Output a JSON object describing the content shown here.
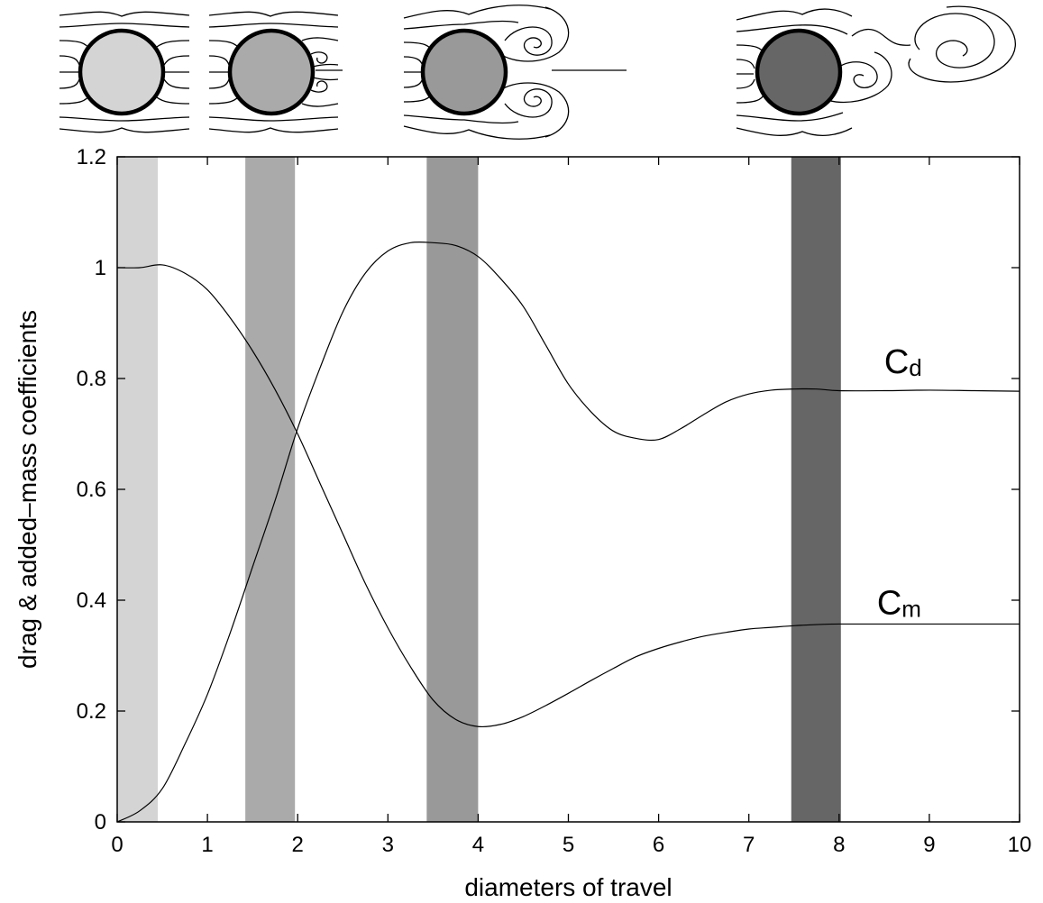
{
  "chart_data": {
    "type": "line",
    "xlabel": "diameters of travel",
    "ylabel": "drag & added–mass coefficients",
    "xlim": [
      0,
      10
    ],
    "ylim": [
      0,
      1.2
    ],
    "xticks": [
      0,
      1,
      2,
      3,
      4,
      5,
      6,
      7,
      8,
      9,
      10
    ],
    "yticks": [
      0,
      0.2,
      0.4,
      0.6,
      0.8,
      1,
      1.2
    ],
    "xtick_labels": [
      "0",
      "1",
      "2",
      "3",
      "4",
      "5",
      "6",
      "7",
      "8",
      "9",
      "10"
    ],
    "ytick_labels": [
      "0",
      "0.2",
      "0.4",
      "0.6",
      "0.8",
      "1",
      "1.2"
    ],
    "grid": false,
    "shaded_bands": [
      {
        "x": [
          0,
          0.45
        ],
        "color": "#d4d4d4"
      },
      {
        "x": [
          1.42,
          1.97
        ],
        "color": "#aaaaaa"
      },
      {
        "x": [
          3.43,
          4.0
        ],
        "color": "#999999"
      },
      {
        "x": [
          7.47,
          8.02
        ],
        "color": "#666666"
      }
    ],
    "series": [
      {
        "name": "Cd",
        "label_main": "C",
        "label_sub": "d",
        "x": [
          0,
          0.25,
          0.5,
          0.75,
          1,
          1.25,
          1.5,
          1.75,
          2,
          2.25,
          2.5,
          2.75,
          3,
          3.25,
          3.5,
          3.75,
          4,
          4.25,
          4.5,
          4.75,
          5,
          5.25,
          5.5,
          5.75,
          6,
          6.25,
          6.5,
          6.75,
          7,
          7.25,
          7.5,
          7.75,
          8,
          8.5,
          9,
          9.5,
          10
        ],
        "y": [
          0,
          0.02,
          0.06,
          0.14,
          0.23,
          0.34,
          0.46,
          0.58,
          0.71,
          0.82,
          0.92,
          0.99,
          1.03,
          1.045,
          1.045,
          1.04,
          1.02,
          0.98,
          0.93,
          0.86,
          0.79,
          0.74,
          0.705,
          0.692,
          0.69,
          0.71,
          0.735,
          0.758,
          0.772,
          0.779,
          0.781,
          0.781,
          0.778,
          0.778,
          0.779,
          0.778,
          0.777
        ]
      },
      {
        "name": "Cm",
        "label_main": "C",
        "label_sub": "m",
        "x": [
          0,
          0.25,
          0.5,
          0.75,
          1,
          1.25,
          1.5,
          1.75,
          2,
          2.25,
          2.5,
          2.75,
          3,
          3.25,
          3.5,
          3.75,
          4,
          4.25,
          4.5,
          4.75,
          5,
          5.25,
          5.5,
          5.75,
          6,
          6.25,
          6.5,
          6.75,
          7,
          7.25,
          7.5,
          7.75,
          8,
          8.5,
          9,
          9.5,
          10
        ],
        "y": [
          1.0,
          1.0,
          1.005,
          0.99,
          0.96,
          0.91,
          0.85,
          0.78,
          0.7,
          0.61,
          0.52,
          0.43,
          0.35,
          0.28,
          0.22,
          0.185,
          0.172,
          0.176,
          0.19,
          0.21,
          0.232,
          0.255,
          0.277,
          0.298,
          0.313,
          0.325,
          0.335,
          0.342,
          0.348,
          0.351,
          0.354,
          0.356,
          0.357,
          0.357,
          0.357,
          0.357,
          0.357
        ]
      }
    ]
  },
  "flow_sketches": [
    {
      "fill": "#d4d4d4",
      "state": "attached"
    },
    {
      "fill": "#aaaaaa",
      "state": "small-symmetric-vortices"
    },
    {
      "fill": "#999999",
      "state": "large-symmetric-vortices"
    },
    {
      "fill": "#666666",
      "state": "vortex-shedding"
    }
  ]
}
